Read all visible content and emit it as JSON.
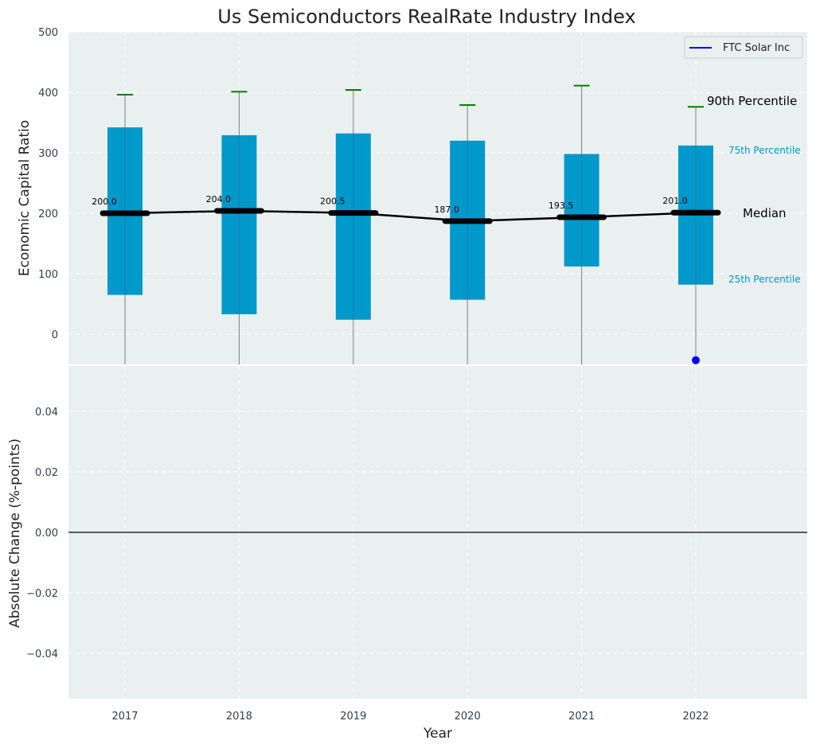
{
  "chart_data": [
    {
      "type": "box",
      "title": "Us Semiconductors RealRate Industry Index",
      "ylabel": "Economic Capital Ratio",
      "xlabel": "",
      "ylim": [
        -50,
        500
      ],
      "yticks": [
        "0",
        "100",
        "200",
        "300",
        "400",
        "500"
      ],
      "categories": [
        "2017",
        "2018",
        "2019",
        "2020",
        "2021",
        "2022"
      ],
      "p25": [
        65,
        33,
        24,
        57,
        112,
        82
      ],
      "p75": [
        342,
        329,
        332,
        320,
        298,
        312
      ],
      "p90": [
        396,
        401,
        404,
        379,
        411,
        376
      ],
      "median": [
        200.0,
        204.0,
        200.5,
        187.0,
        193.5,
        201.0
      ],
      "median_labels": [
        "200.0",
        "204.0",
        "200.5",
        "187.0",
        "193.5",
        "201.0"
      ],
      "series": [
        {
          "name": "FTC Solar Inc",
          "x": [
            "2022"
          ],
          "values": [
            -43
          ],
          "color": "#0000ff"
        }
      ],
      "annotations": {
        "p90": "90th Percentile",
        "p75": "75th Percentile",
        "median": "Median",
        "p25": "25th Percentile"
      },
      "legend_position": "top-right",
      "grid": true,
      "colors": {
        "box": "#0099cc",
        "median": "#000000",
        "whisker_cap": "#008000",
        "whisker": "#808080",
        "background": "#eaeff0"
      }
    },
    {
      "type": "line",
      "ylabel": "Absolute Change (%-points)",
      "xlabel": "Year",
      "ylim": [
        -0.055,
        0.055
      ],
      "yticks": [
        "−0.04",
        "−0.02",
        "0.00",
        "0.02",
        "0.04"
      ],
      "categories": [
        "2017",
        "2018",
        "2019",
        "2020",
        "2021",
        "2022"
      ],
      "reference_line": 0,
      "grid": true
    }
  ]
}
